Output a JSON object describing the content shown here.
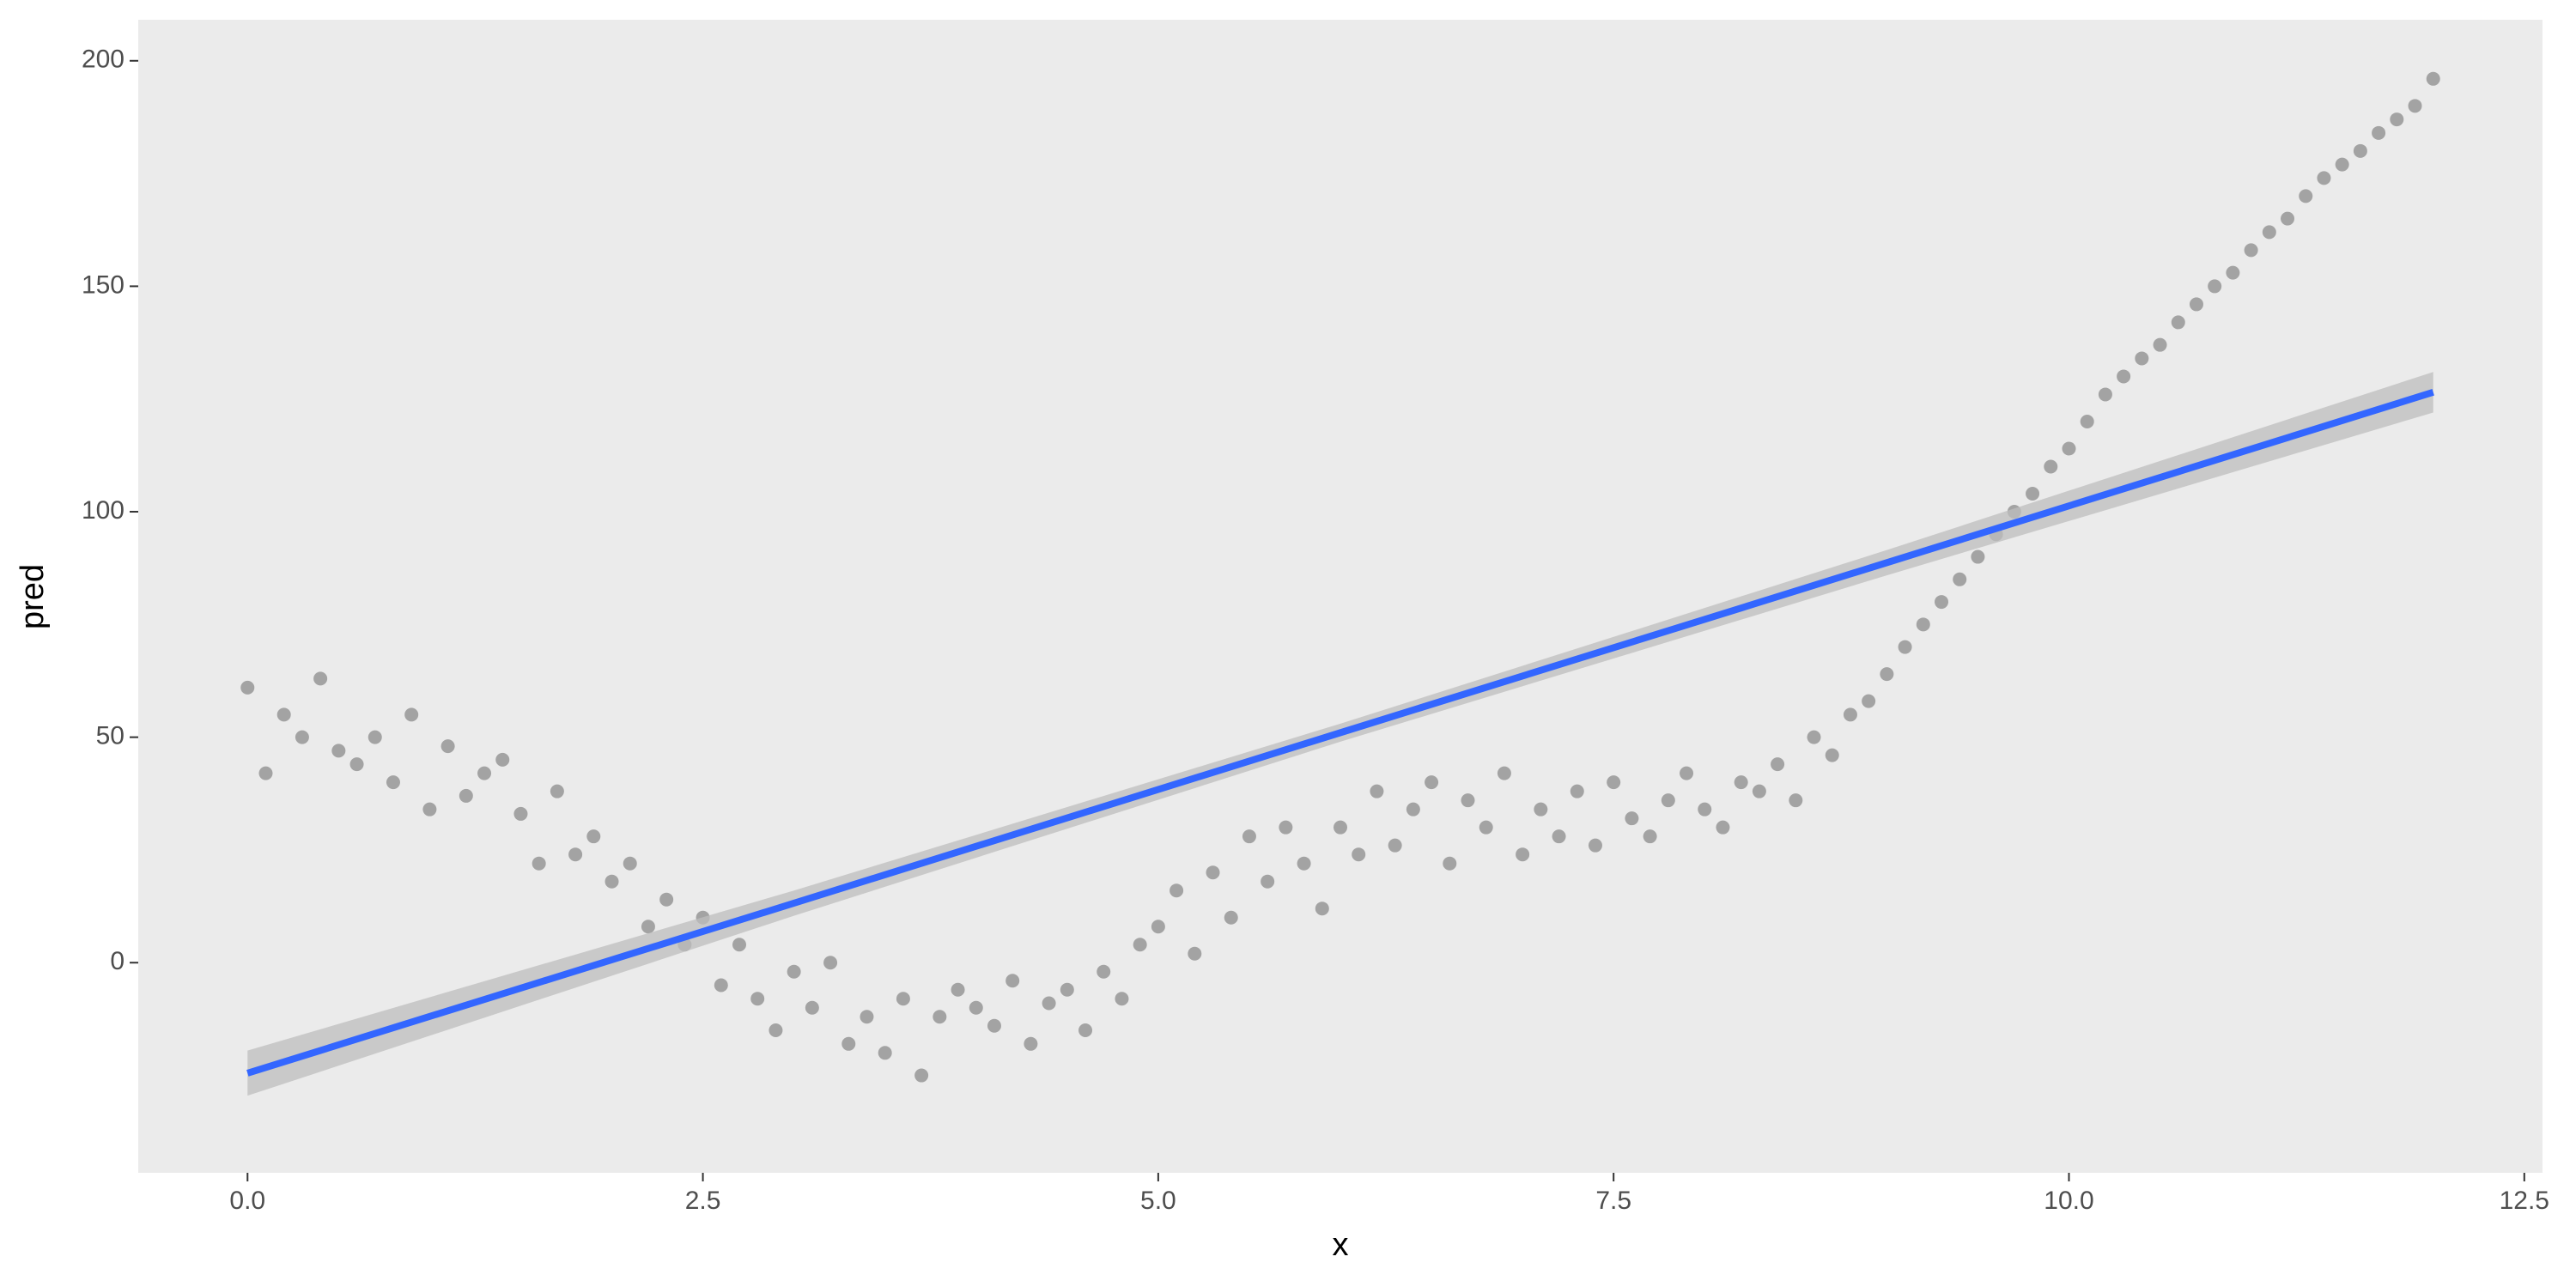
{
  "chart_data": {
    "type": "scatter",
    "x_label": "x",
    "y_label": "pred",
    "xlim": [
      -0.6,
      12.6
    ],
    "ylim": [
      -46.6,
      209.1
    ],
    "xticks": [
      {
        "value": 0,
        "label": "0.0"
      },
      2.5,
      {
        "value": 5,
        "label": "5.0"
      },
      7.5,
      {
        "value": 10,
        "label": "10.0"
      },
      12.5
    ],
    "yticks": [
      0,
      50,
      100,
      150,
      200
    ],
    "minor_xticks": [
      1.25,
      3.75,
      6.25,
      8.75,
      11.25
    ],
    "minor_yticks": [
      -25,
      25,
      75,
      125,
      175
    ],
    "grid": true,
    "color": "#a3a3a3",
    "x": [
      0.0,
      0.1,
      0.2,
      0.3,
      0.4,
      0.5,
      0.6,
      0.7,
      0.8,
      0.9,
      1.0,
      1.1,
      1.2,
      1.3,
      1.4,
      1.5,
      1.6,
      1.7,
      1.8,
      1.9,
      2.0,
      2.1,
      2.2,
      2.3,
      2.4,
      2.5,
      2.6,
      2.7,
      2.8,
      2.9,
      3.0,
      3.1,
      3.2,
      3.3,
      3.4,
      3.5,
      3.6,
      3.7,
      3.8,
      3.9,
      4.0,
      4.1,
      4.2,
      4.3,
      4.4,
      4.5,
      4.6,
      4.7,
      4.8,
      4.9,
      5.0,
      5.1,
      5.2,
      5.3,
      5.4,
      5.5,
      5.6,
      5.7,
      5.8,
      5.9,
      6.0,
      6.1,
      6.2,
      6.3,
      6.4,
      6.5,
      6.6,
      6.7,
      6.8,
      6.9,
      7.0,
      7.1,
      7.2,
      7.3,
      7.4,
      7.5,
      7.6,
      7.7,
      7.8,
      7.9,
      8.0,
      8.1,
      8.2,
      8.3,
      8.4,
      8.5,
      8.6,
      8.7,
      8.8,
      8.9,
      9.0,
      9.1,
      9.2,
      9.3,
      9.4,
      9.5,
      9.6,
      9.7,
      9.8,
      9.9,
      10.0,
      10.1,
      10.2,
      10.3,
      10.4,
      10.5,
      10.6,
      10.7,
      10.8,
      10.9,
      11.0,
      11.1,
      11.2,
      11.3,
      11.4,
      11.5,
      11.6,
      11.7,
      11.8,
      11.9,
      12.0
    ],
    "values": [
      61,
      42,
      55,
      50,
      63,
      47,
      44,
      50,
      40,
      55,
      34,
      48,
      37,
      42,
      45,
      33,
      22,
      38,
      24,
      28,
      18,
      22,
      8,
      14,
      4,
      10,
      -5,
      4,
      -8,
      -15,
      -2,
      -10,
      0,
      -18,
      -12,
      -20,
      -8,
      -25,
      -12,
      -6,
      -10,
      -14,
      -4,
      -18,
      -9,
      -6,
      -15,
      -2,
      -8,
      4,
      8,
      16,
      2,
      20,
      10,
      28,
      18,
      30,
      22,
      12,
      30,
      24,
      38,
      26,
      34,
      40,
      22,
      36,
      30,
      42,
      24,
      34,
      28,
      38,
      26,
      40,
      32,
      28,
      36,
      42,
      34,
      30,
      40,
      38,
      44,
      36,
      50,
      46,
      55,
      58,
      64,
      70,
      75,
      80,
      85,
      90,
      95,
      100,
      104,
      110,
      114,
      120,
      126,
      130,
      134,
      137,
      142,
      146,
      150,
      153,
      158,
      162,
      165,
      170,
      174,
      177,
      180,
      184,
      187,
      190,
      196
    ],
    "fit": {
      "color": "#3366ff",
      "band_color": "#bebebe",
      "x": [
        0,
        3,
        6,
        9,
        12
      ],
      "values": [
        -24.5,
        13.2,
        51.0,
        88.7,
        126.5
      ],
      "lower": [
        -29.5,
        10.4,
        49.0,
        85.9,
        122.0
      ],
      "upper": [
        -19.5,
        16.0,
        53.0,
        91.5,
        131.0
      ]
    }
  }
}
